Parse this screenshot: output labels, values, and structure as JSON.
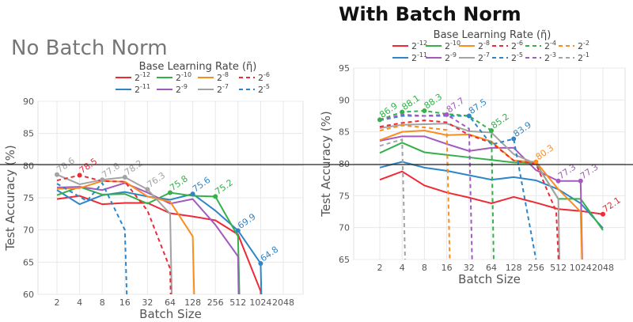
{
  "titles": {
    "left": "No Batch Norm",
    "right": "With Batch Norm"
  },
  "colors": {
    "2^-12": "#ee2a35",
    "2^-11": "#2e86c8",
    "2^-10": "#35b04a",
    "2^-9": "#a25bbd",
    "2^-8": "#fb8c1e",
    "2^-7": "#a3a3a3",
    "2^-6": "#ee2a35",
    "2^-5": "#2e86c8",
    "2^-4": "#35b04a",
    "2^-3": "#a25bbd",
    "2^-2": "#fb8c1e",
    "2^-1": "#a3a3a3"
  },
  "chart_data": [
    {
      "type": "line",
      "title": "No Batch Norm",
      "legend_title": "Base Learning Rate (η̃)",
      "legend_placement": "top",
      "xlabel": "Batch Size",
      "ylabel": "Test Accuracy (%)",
      "x_scale": "log2",
      "xticks": [
        "2",
        "4",
        "8",
        "16",
        "32",
        "64",
        "128",
        "256",
        "512",
        "1024",
        "2048"
      ],
      "yticks": [
        "60",
        "65",
        "70",
        "75",
        "80",
        "85",
        "90"
      ],
      "ylim": [
        60,
        90
      ],
      "grid": true,
      "reference_line_y": 80,
      "series": [
        {
          "name": "2^-12",
          "base": "2",
          "exp": "-12",
          "dashed": false,
          "x": [
            2,
            4,
            8,
            16,
            32,
            64,
            128,
            256,
            512,
            1024,
            1100
          ],
          "y": [
            74.8,
            75.3,
            74.0,
            74.2,
            74.2,
            72.6,
            72.1,
            71.5,
            69.3,
            60.5,
            50
          ]
        },
        {
          "name": "2^-11",
          "base": "2",
          "exp": "-11",
          "dashed": false,
          "x": [
            2,
            4,
            8,
            16,
            32,
            64,
            128,
            256,
            512,
            1024,
            1100
          ],
          "y": [
            76.2,
            74.0,
            75.4,
            75.9,
            75.2,
            74.7,
            75.6,
            73.0,
            69.9,
            64.8,
            50
          ]
        },
        {
          "name": "2^-10",
          "base": "2",
          "exp": "-10",
          "dashed": false,
          "x": [
            2,
            4,
            8,
            16,
            32,
            64,
            128,
            256,
            512,
            560
          ],
          "y": [
            75.4,
            76.7,
            75.5,
            75.6,
            74.1,
            75.8,
            75.3,
            75.2,
            69.0,
            50
          ]
        },
        {
          "name": "2^-9",
          "base": "2",
          "exp": "-9",
          "dashed": false,
          "x": [
            2,
            4,
            8,
            16,
            32,
            64,
            128,
            256,
            512,
            540
          ],
          "y": [
            76.6,
            76.7,
            76.2,
            77.3,
            75.8,
            74.1,
            74.8,
            70.8,
            65.9,
            50
          ]
        },
        {
          "name": "2^-8",
          "base": "2",
          "exp": "-8",
          "dashed": false,
          "x": [
            2,
            4,
            8,
            16,
            32,
            64,
            128,
            140
          ],
          "y": [
            76.4,
            76.5,
            77.6,
            77.5,
            75.2,
            74.4,
            69.0,
            50
          ]
        },
        {
          "name": "2^-7",
          "base": "2",
          "exp": "-7",
          "dashed": false,
          "x": [
            2,
            4,
            8,
            16,
            32,
            64,
            70
          ],
          "y": [
            78.6,
            77.1,
            77.8,
            78.2,
            76.3,
            72.5,
            50
          ]
        },
        {
          "name": "2^-6",
          "base": "2",
          "exp": "-6",
          "dashed": true,
          "x": [
            2,
            4,
            8,
            16,
            32,
            64,
            68
          ],
          "y": [
            77.7,
            78.5,
            77.6,
            77.5,
            73.0,
            64.0,
            50
          ]
        },
        {
          "name": "2^-5",
          "base": "2",
          "exp": "-5",
          "dashed": true,
          "x": [
            2,
            5,
            8,
            16,
            18
          ],
          "y": [
            77.2,
            74.5,
            77.3,
            70.0,
            50
          ]
        }
      ],
      "annotations": [
        {
          "text": "78.6",
          "series": "2^-7",
          "x": 2,
          "y": 78.6
        },
        {
          "text": "78.5",
          "series": "2^-6",
          "x": 4,
          "y": 78.5
        },
        {
          "text": "77.8",
          "series": "2^-7",
          "x": 8,
          "y": 77.8
        },
        {
          "text": "78.2",
          "series": "2^-7",
          "x": 16,
          "y": 78.2
        },
        {
          "text": "76.3",
          "series": "2^-7",
          "x": 32,
          "y": 76.3
        },
        {
          "text": "75.8",
          "series": "2^-10",
          "x": 64,
          "y": 75.8
        },
        {
          "text": "75.6",
          "series": "2^-11",
          "x": 128,
          "y": 75.6
        },
        {
          "text": "75.2",
          "series": "2^-10",
          "x": 256,
          "y": 75.2
        },
        {
          "text": "69.9",
          "series": "2^-11",
          "x": 512,
          "y": 69.9
        },
        {
          "text": "64.8",
          "series": "2^-11",
          "x": 1024,
          "y": 64.8
        }
      ]
    },
    {
      "type": "line",
      "title": "With Batch Norm",
      "legend_title": "Base Learning Rate (η̃)",
      "legend_placement": "top",
      "xlabel": "Batch Size",
      "ylabel": "Test Accuracy (%)",
      "x_scale": "log2",
      "xticks": [
        "2",
        "4",
        "8",
        "16",
        "32",
        "64",
        "128",
        "256",
        "512",
        "1024",
        "2048"
      ],
      "yticks": [
        "65",
        "70",
        "75",
        "80",
        "85",
        "90",
        "95"
      ],
      "ylim": [
        65,
        95
      ],
      "grid": true,
      "reference_line_y": 80,
      "series": [
        {
          "name": "2^-12",
          "base": "2",
          "exp": "-12",
          "dashed": false,
          "x": [
            2,
            4,
            8,
            16,
            32,
            64,
            128,
            256,
            512,
            1024,
            2048
          ],
          "y": [
            77.5,
            78.8,
            76.6,
            75.5,
            74.7,
            73.8,
            74.8,
            73.9,
            72.9,
            72.6,
            72.1
          ]
        },
        {
          "name": "2^-11",
          "base": "2",
          "exp": "-11",
          "dashed": false,
          "x": [
            2,
            4,
            8,
            16,
            32,
            64,
            128,
            256,
            512,
            1024,
            2048
          ],
          "y": [
            79.4,
            80.3,
            79.4,
            78.9,
            78.2,
            77.5,
            77.9,
            77.4,
            76.0,
            73.8,
            69.9
          ]
        },
        {
          "name": "2^-10",
          "base": "2",
          "exp": "-10",
          "dashed": false,
          "x": [
            2,
            4,
            8,
            16,
            32,
            64,
            128,
            256,
            512,
            1024,
            2048
          ],
          "y": [
            81.7,
            83.3,
            81.8,
            81.4,
            81.0,
            80.6,
            80.2,
            80.1,
            74.5,
            74.5,
            69.6
          ]
        },
        {
          "name": "2^-9",
          "base": "2",
          "exp": "-9",
          "dashed": false,
          "x": [
            2,
            4,
            8,
            16,
            32,
            64,
            128,
            256,
            512,
            1024,
            1100
          ],
          "y": [
            83.6,
            84.3,
            84.3,
            83.1,
            82.0,
            82.5,
            82.5,
            79.0,
            77.3,
            77.3,
            60
          ]
        },
        {
          "name": "2^-8",
          "base": "2",
          "exp": "-8",
          "dashed": false,
          "x": [
            2,
            4,
            8,
            16,
            32,
            64,
            128,
            256,
            512,
            1024,
            1100
          ],
          "y": [
            83.7,
            85.0,
            85.2,
            84.5,
            84.6,
            83.5,
            80.5,
            80.3,
            76.0,
            72.5,
            60
          ]
        },
        {
          "name": "2^-7",
          "base": "2",
          "exp": "-7",
          "dashed": false,
          "x": [
            2,
            4,
            8,
            16,
            32,
            64,
            128,
            256,
            512,
            540
          ],
          "y": [
            85.6,
            86.1,
            86.2,
            86.3,
            85.1,
            84.9,
            81.5,
            80.0,
            74.5,
            60
          ]
        },
        {
          "name": "2^-6",
          "base": "2",
          "exp": "-6",
          "dashed": true,
          "x": [
            2,
            4,
            8,
            16,
            32,
            64,
            128,
            256,
            480,
            540
          ],
          "y": [
            85.8,
            86.4,
            86.8,
            86.5,
            84.5,
            83.3,
            80.5,
            80.0,
            72.5,
            60
          ]
        },
        {
          "name": "2^-5",
          "base": "2",
          "exp": "-5",
          "dashed": true,
          "x": [
            2,
            4,
            8,
            16,
            32,
            64,
            128,
            256,
            270
          ],
          "y": [
            86.8,
            87.5,
            87.5,
            87.5,
            87.5,
            83.0,
            83.9,
            65.0,
            60
          ]
        },
        {
          "name": "2^-4",
          "base": "2",
          "exp": "-4",
          "dashed": true,
          "x": [
            2,
            4,
            8,
            16,
            32,
            64,
            70
          ],
          "y": [
            86.9,
            88.1,
            88.3,
            87.8,
            87.5,
            85.2,
            60
          ]
        },
        {
          "name": "2^-3",
          "base": "2",
          "exp": "-3",
          "dashed": true,
          "x": [
            2,
            4,
            8,
            16,
            32,
            36
          ],
          "y": [
            86.8,
            87.7,
            87.5,
            87.7,
            85.5,
            60
          ]
        },
        {
          "name": "2^-2",
          "base": "2",
          "exp": "-2",
          "dashed": true,
          "x": [
            2,
            4,
            8,
            16,
            18
          ],
          "y": [
            85.2,
            86.0,
            85.7,
            85.3,
            60
          ]
        },
        {
          "name": "2^-1",
          "base": "2",
          "exp": "-1",
          "dashed": true,
          "x": [
            2,
            4,
            4.5
          ],
          "y": [
            82.8,
            83.8,
            60
          ]
        }
      ],
      "annotations": [
        {
          "text": "86.9",
          "series": "2^-4",
          "x": 2,
          "y": 86.9
        },
        {
          "text": "88.1",
          "series": "2^-4",
          "x": 4,
          "y": 88.1
        },
        {
          "text": "88.3",
          "series": "2^-4",
          "x": 8,
          "y": 88.3
        },
        {
          "text": "87.7",
          "series": "2^-3",
          "x": 16,
          "y": 87.7
        },
        {
          "text": "87.5",
          "series": "2^-5",
          "x": 32,
          "y": 87.5
        },
        {
          "text": "85.2",
          "series": "2^-4",
          "x": 64,
          "y": 85.2
        },
        {
          "text": "83.9",
          "series": "2^-5",
          "x": 128,
          "y": 83.9
        },
        {
          "text": "80.3",
          "series": "2^-8",
          "x": 256,
          "y": 80.3
        },
        {
          "text": "77.3",
          "series": "2^-9",
          "x": 512,
          "y": 77.3
        },
        {
          "text": "77.3",
          "series": "2^-9",
          "x": 1024,
          "y": 77.3
        },
        {
          "text": "72.1",
          "series": "2^-12",
          "x": 2048,
          "y": 72.1
        }
      ]
    }
  ]
}
